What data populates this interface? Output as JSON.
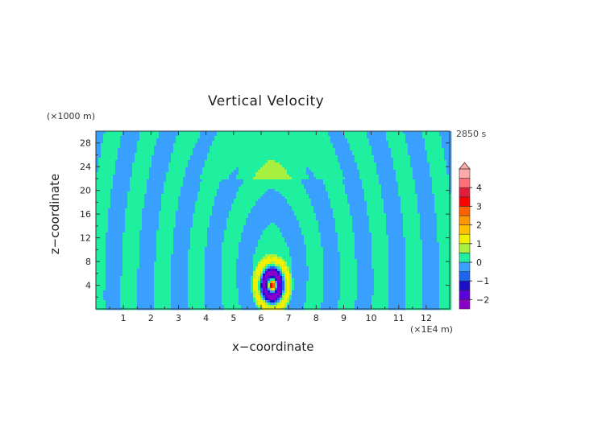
{
  "chart_data": {
    "type": "heatmap",
    "title": "Vertical Velocity",
    "time_label": "2850 s",
    "xlabel": "x−coordinate",
    "ylabel": "z−coordinate",
    "x_unit": "(×1E4 m)",
    "y_unit": "(×1000 m)",
    "xlim": [
      0,
      12.85
    ],
    "ylim": [
      0,
      30
    ],
    "x_ticks": [
      "1",
      "2",
      "3",
      "4",
      "5",
      "6",
      "7",
      "8",
      "9",
      "10",
      "11",
      "12"
    ],
    "y_ticks": [
      "4",
      "8",
      "12",
      "16",
      "20",
      "24",
      "28"
    ],
    "colorbar": {
      "labels": [
        "4",
        "3",
        "2",
        "1",
        "0",
        "−1",
        "−2"
      ],
      "bins": [
        {
          "lo": -2.5,
          "hi": -2.0,
          "color": "#8a00c8"
        },
        {
          "lo": -2.0,
          "hi": -1.5,
          "color": "#5a00d8"
        },
        {
          "lo": -1.5,
          "hi": -1.0,
          "color": "#1a10c8"
        },
        {
          "lo": -1.0,
          "hi": -0.5,
          "color": "#1e64f0"
        },
        {
          "lo": -0.5,
          "hi": 0.0,
          "color": "#3aa0ff"
        },
        {
          "lo": 0.0,
          "hi": 0.5,
          "color": "#1ef0a0"
        },
        {
          "lo": 0.5,
          "hi": 1.0,
          "color": "#a8f040"
        },
        {
          "lo": 1.0,
          "hi": 1.5,
          "color": "#f0f000"
        },
        {
          "lo": 1.5,
          "hi": 2.0,
          "color": "#ffc000"
        },
        {
          "lo": 2.0,
          "hi": 2.5,
          "color": "#ff9600"
        },
        {
          "lo": 2.5,
          "hi": 3.0,
          "color": "#ff6000"
        },
        {
          "lo": 3.0,
          "hi": 3.5,
          "color": "#ff0000"
        },
        {
          "lo": 3.5,
          "hi": 4.0,
          "color": "#e01e3c"
        },
        {
          "lo": 4.0,
          "hi": 4.5,
          "color": "#ff6e78"
        },
        {
          "lo": 4.5,
          "hi": 5.0,
          "color": "#ffaaaa"
        }
      ],
      "overflow_color": "#ffaaaa",
      "range": [
        -2.5,
        5.0
      ]
    },
    "field": {
      "background_color": "#3aa0ff",
      "dominant_colors": [
        "#3aa0ff",
        "#1ef0a0"
      ],
      "source_x": 6.4,
      "source_z": 1.5
    }
  }
}
